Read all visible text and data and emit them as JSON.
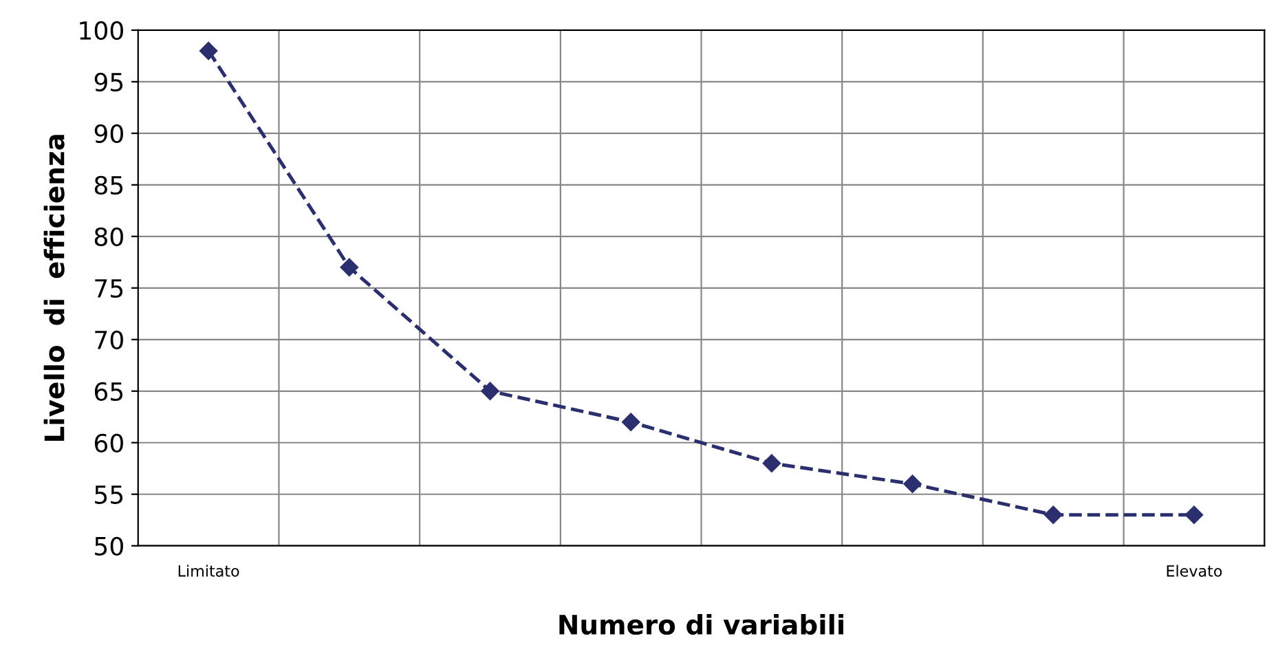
{
  "chart_data": {
    "type": "line",
    "xlabel": "Numero di variabili",
    "ylabel": "Livello  di  efficienza",
    "categories": [
      "Limitato",
      null,
      null,
      null,
      null,
      null,
      null,
      "Elevato"
    ],
    "series": [
      {
        "color": "#2b2f6e",
        "values": [
          98,
          77,
          65,
          62,
          58,
          56,
          53,
          53
        ]
      }
    ],
    "ylim": [
      50,
      100
    ],
    "yticks": [
      50,
      55,
      60,
      65,
      70,
      75,
      80,
      85,
      90,
      95,
      100
    ],
    "grid": true,
    "marker": "diamond",
    "line_style": "dashed",
    "legend": false
  }
}
